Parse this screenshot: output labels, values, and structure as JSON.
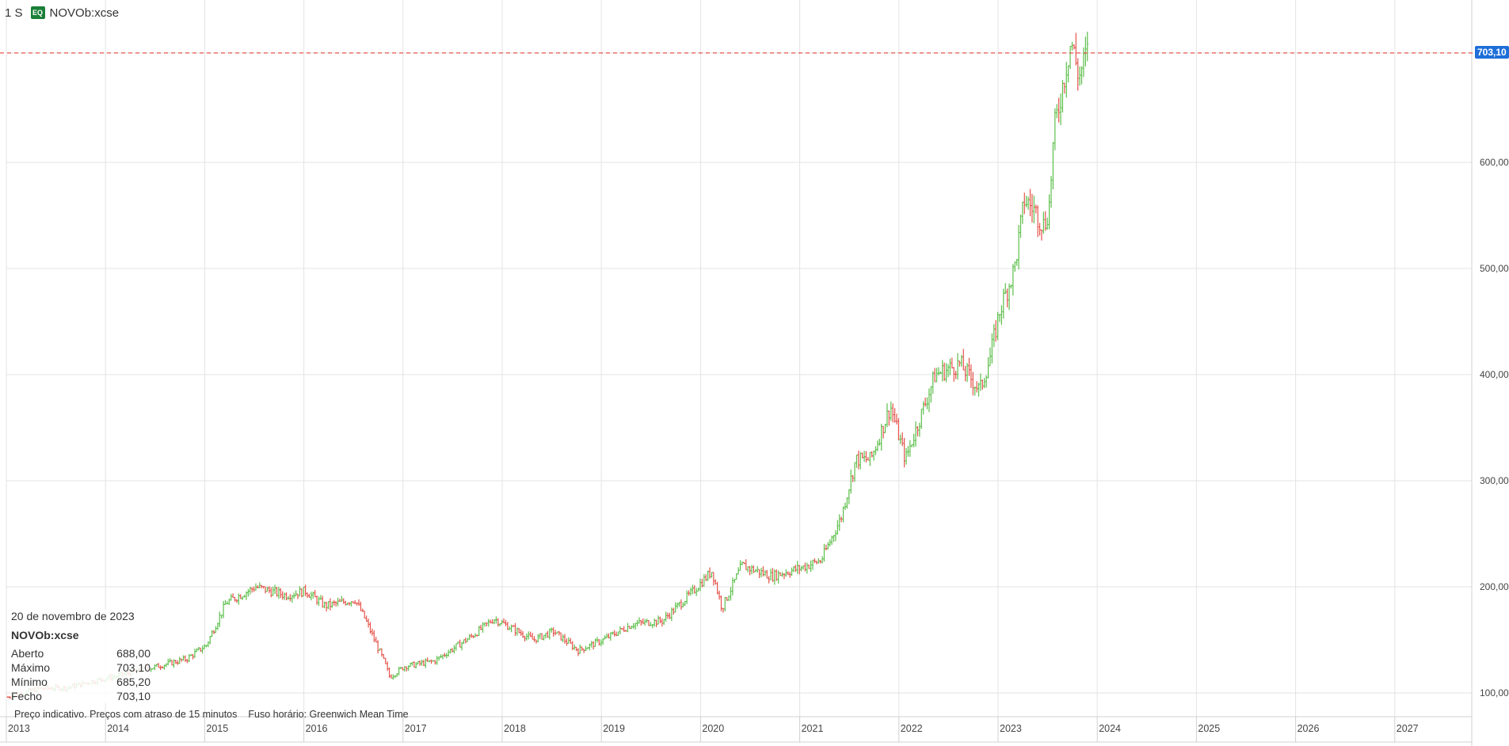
{
  "toolbar": {
    "interval": "1 S",
    "badge": "EQ",
    "symbol": "NOVOb:xcse"
  },
  "price_tag": "703,10",
  "info_box": {
    "date": "20 de novembro de 2023",
    "symbol": "NOVOb:xcse",
    "rows": [
      {
        "label": "Aberto",
        "value": "688,00"
      },
      {
        "label": "Máximo",
        "value": "703,10"
      },
      {
        "label": "Mínimo",
        "value": "685,20"
      },
      {
        "label": "Fecho",
        "value": "703,10"
      }
    ]
  },
  "footer": {
    "note": "Preço indicativo. Preços com atraso de 15 minutos",
    "timezone": "Fuso horário: Greenwich Mean Time"
  },
  "colors": {
    "up": "#5cbf4a",
    "down": "#e5534b",
    "grid": "#e3e3e3",
    "price_line": "#e5534b",
    "price_tag": "#1e6fd9"
  },
  "chart_data": {
    "type": "ohlc",
    "title": "",
    "xlabel": "",
    "ylabel": "",
    "x_ticks": [
      "2013",
      "2014",
      "2015",
      "2016",
      "2017",
      "2018",
      "2019",
      "2020",
      "2021",
      "2022",
      "2023",
      "2024",
      "2025",
      "2026",
      "2027"
    ],
    "y_ticks": [
      "100,00",
      "200,00",
      "300,00",
      "400,00",
      "500,00",
      "600,00"
    ],
    "y_tick_values": [
      100,
      200,
      300,
      400,
      500,
      600
    ],
    "ylim": [
      90,
      750
    ],
    "xlim": [
      2013.0,
      2027.8
    ],
    "last_price": 703.1,
    "series_anchors": [
      [
        2013.0,
        96
      ],
      [
        2013.3,
        104
      ],
      [
        2013.6,
        105
      ],
      [
        2013.9,
        112
      ],
      [
        2014.2,
        118
      ],
      [
        2014.5,
        125
      ],
      [
        2014.8,
        132
      ],
      [
        2015.0,
        145
      ],
      [
        2015.2,
        185
      ],
      [
        2015.5,
        200
      ],
      [
        2015.8,
        192
      ],
      [
        2016.0,
        196
      ],
      [
        2016.2,
        182
      ],
      [
        2016.5,
        188
      ],
      [
        2016.6,
        170
      ],
      [
        2016.8,
        128
      ],
      [
        2016.85,
        115
      ],
      [
        2017.0,
        125
      ],
      [
        2017.3,
        130
      ],
      [
        2017.7,
        155
      ],
      [
        2017.9,
        170
      ],
      [
        2018.1,
        160
      ],
      [
        2018.3,
        150
      ],
      [
        2018.5,
        158
      ],
      [
        2018.75,
        140
      ],
      [
        2019.0,
        150
      ],
      [
        2019.3,
        165
      ],
      [
        2019.6,
        168
      ],
      [
        2019.9,
        195
      ],
      [
        2020.1,
        215
      ],
      [
        2020.2,
        180
      ],
      [
        2020.4,
        220
      ],
      [
        2020.7,
        210
      ],
      [
        2021.0,
        218
      ],
      [
        2021.2,
        225
      ],
      [
        2021.4,
        265
      ],
      [
        2021.55,
        320
      ],
      [
        2021.7,
        320
      ],
      [
        2021.9,
        370
      ],
      [
        2022.05,
        320
      ],
      [
        2022.2,
        360
      ],
      [
        2022.35,
        400
      ],
      [
        2022.6,
        410
      ],
      [
        2022.8,
        385
      ],
      [
        2022.9,
        415
      ],
      [
        2023.0,
        460
      ],
      [
        2023.15,
        500
      ],
      [
        2023.25,
        565
      ],
      [
        2023.35,
        555
      ],
      [
        2023.45,
        540
      ],
      [
        2023.5,
        560
      ],
      [
        2023.55,
        630
      ],
      [
        2023.65,
        680
      ],
      [
        2023.72,
        715
      ],
      [
        2023.8,
        680
      ],
      [
        2023.88,
        703
      ]
    ]
  }
}
